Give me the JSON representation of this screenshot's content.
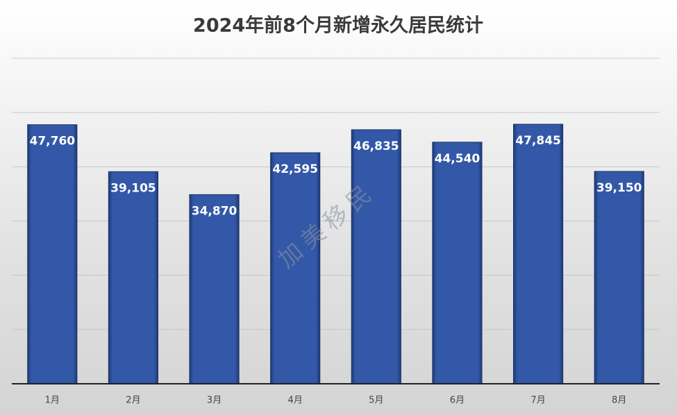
{
  "chart_data": {
    "type": "bar",
    "title": "2024年前8个月新增永久居民统计",
    "categories": [
      "1月",
      "2月",
      "3月",
      "4月",
      "5月",
      "6月",
      "7月",
      "8月"
    ],
    "values": [
      47760,
      39105,
      34870,
      42595,
      46835,
      44540,
      47845,
      39150
    ],
    "value_labels": [
      "47,760",
      "39,105",
      "34,870",
      "42,595",
      "46,835",
      "44,540",
      "47,845",
      "39,150"
    ],
    "color": "#2f55a2",
    "ylim": [
      0,
      60000
    ],
    "yticks": [
      0,
      10000,
      20000,
      30000,
      40000,
      50000,
      60000
    ],
    "grid": true,
    "watermark": "加 美 移 民"
  }
}
